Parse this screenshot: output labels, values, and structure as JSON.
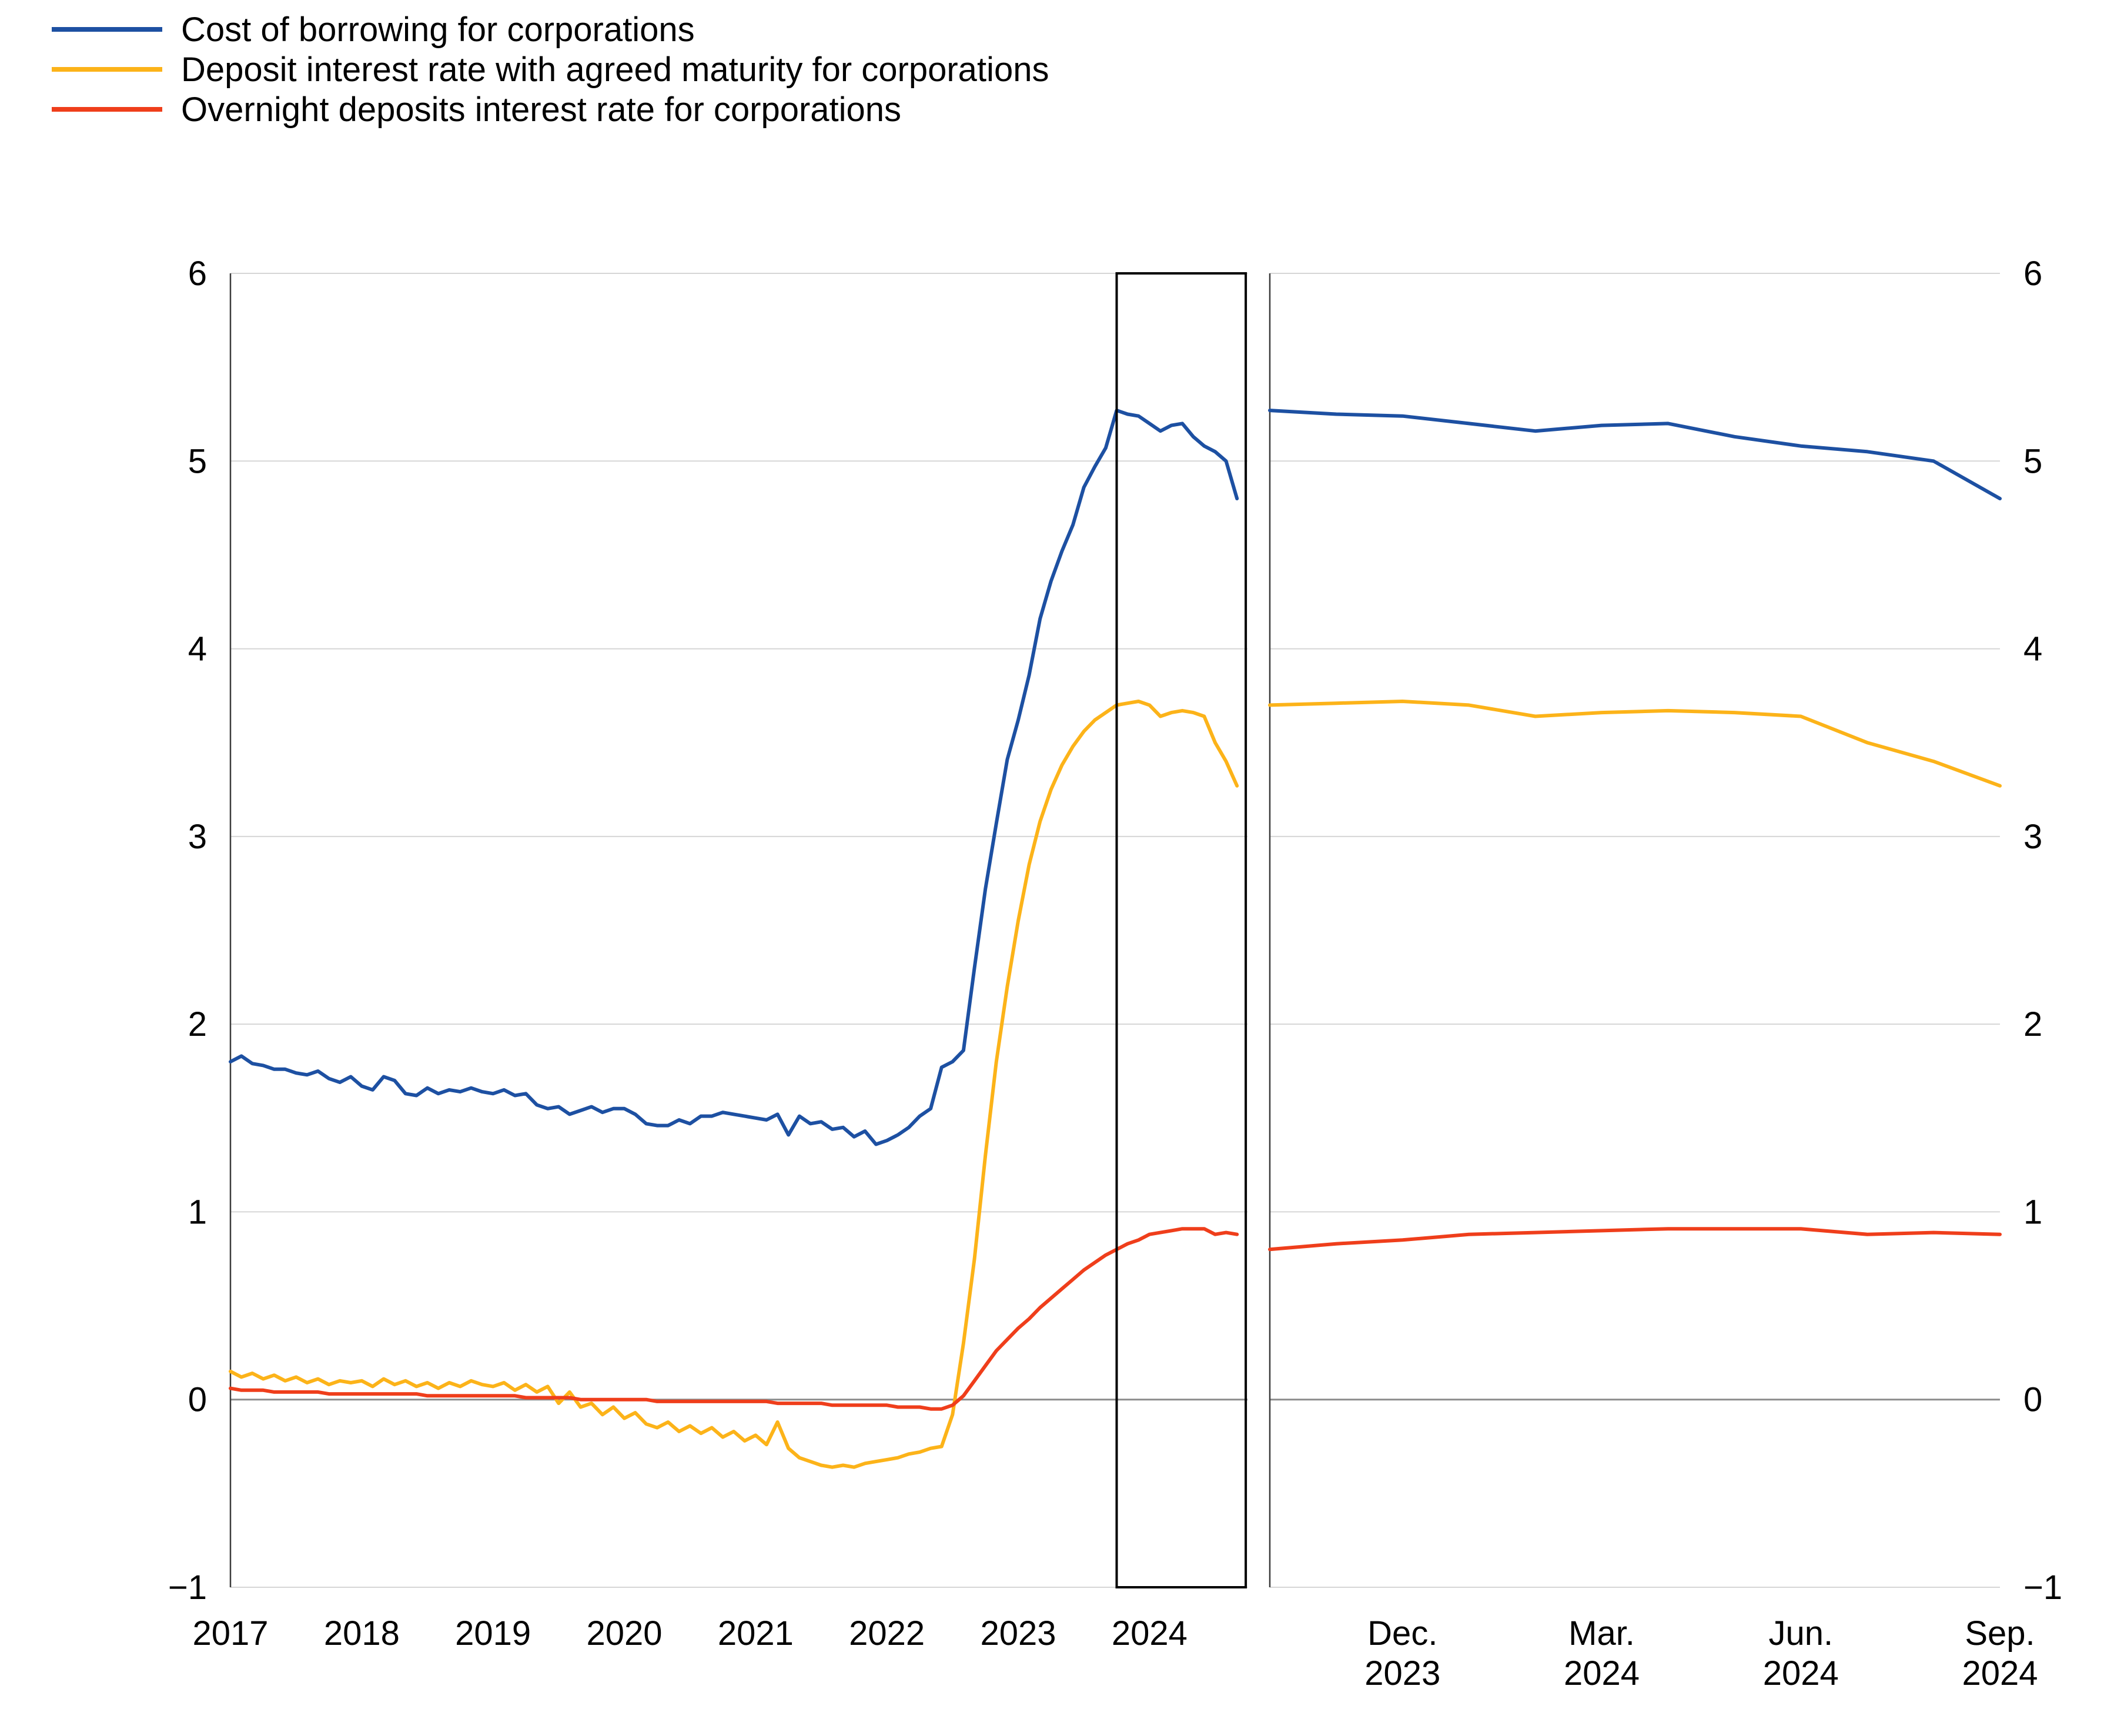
{
  "legend": {
    "items": [
      {
        "label": "Cost of borrowing for corporations",
        "color": "#1d50a2"
      },
      {
        "label": "Deposit interest rate with agreed maturity for corporations",
        "color": "#fcb319"
      },
      {
        "label": "Overnight deposits interest rate for corporations",
        "color": "#ef3e1b"
      }
    ]
  },
  "style": {
    "background": "#ffffff",
    "grid_color": "#d6d6d6",
    "zero_line_color": "#8c8c8c",
    "axis_color": "#3c3c3c",
    "box_color": "#000000",
    "text_color": "#000000"
  },
  "axes": {
    "y_tick_values": [
      6,
      5,
      4,
      3,
      2,
      1,
      0,
      -1
    ],
    "y_tick_labels": [
      "6",
      "5",
      "4",
      "3",
      "2",
      "1",
      "0",
      "−1"
    ],
    "ylim": [
      -1,
      6
    ]
  },
  "chart_data": [
    {
      "type": "line",
      "panel": "left",
      "x_unit": "monthly from January 2017 to September 2024",
      "x_tick_labels": [
        "2017",
        "2018",
        "2019",
        "2020",
        "2021",
        "2022",
        "2023",
        "2024"
      ],
      "ylim": [
        -1,
        6
      ],
      "grid": true,
      "highlight_box": {
        "from_month_index": 81,
        "to_month_index": 92.8,
        "note": "zoom region Oct 2023 - Sep 2024 shown in right panel"
      },
      "series": [
        {
          "name": "Cost of borrowing for corporations",
          "color": "#1d50a2",
          "values": [
            1.8,
            1.83,
            1.79,
            1.78,
            1.76,
            1.76,
            1.74,
            1.73,
            1.75,
            1.71,
            1.69,
            1.72,
            1.67,
            1.65,
            1.72,
            1.7,
            1.63,
            1.62,
            1.66,
            1.63,
            1.65,
            1.64,
            1.66,
            1.64,
            1.63,
            1.65,
            1.62,
            1.63,
            1.57,
            1.55,
            1.56,
            1.52,
            1.54,
            1.56,
            1.53,
            1.55,
            1.55,
            1.52,
            1.47,
            1.46,
            1.46,
            1.49,
            1.47,
            1.51,
            1.51,
            1.53,
            1.52,
            1.51,
            1.5,
            1.49,
            1.52,
            1.41,
            1.51,
            1.47,
            1.48,
            1.44,
            1.45,
            1.4,
            1.43,
            1.36,
            1.38,
            1.41,
            1.45,
            1.51,
            1.55,
            1.77,
            1.8,
            1.86,
            2.3,
            2.72,
            3.07,
            3.41,
            3.62,
            3.86,
            4.16,
            4.36,
            4.52,
            4.66,
            4.86,
            4.97,
            5.07,
            5.27,
            5.25,
            5.24,
            5.2,
            5.16,
            5.19,
            5.2,
            5.13,
            5.08,
            5.05,
            5.0,
            4.8
          ]
        },
        {
          "name": "Deposit interest rate with agreed maturity for corporations",
          "color": "#fcb319",
          "values": [
            0.15,
            0.12,
            0.14,
            0.11,
            0.13,
            0.1,
            0.12,
            0.09,
            0.11,
            0.08,
            0.1,
            0.09,
            0.1,
            0.07,
            0.11,
            0.08,
            0.1,
            0.07,
            0.09,
            0.06,
            0.09,
            0.07,
            0.1,
            0.08,
            0.07,
            0.09,
            0.05,
            0.08,
            0.04,
            0.07,
            -0.02,
            0.04,
            -0.04,
            -0.02,
            -0.08,
            -0.04,
            -0.1,
            -0.07,
            -0.13,
            -0.15,
            -0.12,
            -0.17,
            -0.14,
            -0.18,
            -0.15,
            -0.2,
            -0.17,
            -0.22,
            -0.19,
            -0.24,
            -0.12,
            -0.26,
            -0.31,
            -0.33,
            -0.35,
            -0.36,
            -0.35,
            -0.36,
            -0.34,
            -0.33,
            -0.32,
            -0.31,
            -0.29,
            -0.28,
            -0.26,
            -0.25,
            -0.08,
            0.3,
            0.75,
            1.3,
            1.8,
            2.2,
            2.55,
            2.85,
            3.08,
            3.25,
            3.38,
            3.48,
            3.56,
            3.62,
            3.66,
            3.7,
            3.71,
            3.72,
            3.7,
            3.64,
            3.66,
            3.67,
            3.66,
            3.64,
            3.5,
            3.4,
            3.27
          ]
        },
        {
          "name": "Overnight deposits interest rate for corporations",
          "color": "#ef3e1b",
          "values": [
            0.06,
            0.05,
            0.05,
            0.05,
            0.04,
            0.04,
            0.04,
            0.04,
            0.04,
            0.03,
            0.03,
            0.03,
            0.03,
            0.03,
            0.03,
            0.03,
            0.03,
            0.03,
            0.02,
            0.02,
            0.02,
            0.02,
            0.02,
            0.02,
            0.02,
            0.02,
            0.02,
            0.01,
            0.01,
            0.01,
            0.01,
            0.01,
            0.0,
            0.0,
            0.0,
            0.0,
            0.0,
            0.0,
            0.0,
            -0.01,
            -0.01,
            -0.01,
            -0.01,
            -0.01,
            -0.01,
            -0.01,
            -0.01,
            -0.01,
            -0.01,
            -0.01,
            -0.02,
            -0.02,
            -0.02,
            -0.02,
            -0.02,
            -0.03,
            -0.03,
            -0.03,
            -0.03,
            -0.03,
            -0.03,
            -0.04,
            -0.04,
            -0.04,
            -0.05,
            -0.05,
            -0.03,
            0.02,
            0.1,
            0.18,
            0.26,
            0.32,
            0.38,
            0.43,
            0.49,
            0.54,
            0.59,
            0.64,
            0.69,
            0.73,
            0.77,
            0.8,
            0.83,
            0.85,
            0.88,
            0.89,
            0.9,
            0.91,
            0.91,
            0.91,
            0.88,
            0.89,
            0.88
          ]
        }
      ]
    },
    {
      "type": "line",
      "panel": "right",
      "x_unit": "monthly, zoom of highlighted box (Oct 2023 - Sep 2024)",
      "x_ticks": [
        {
          "index": 2,
          "line1": "Dec.",
          "line2": "2023"
        },
        {
          "index": 5,
          "line1": "Mar.",
          "line2": "2024"
        },
        {
          "index": 8,
          "line1": "Jun.",
          "line2": "2024"
        },
        {
          "index": 11,
          "line1": "Sep.",
          "line2": "2024"
        }
      ],
      "ylim": [
        -1,
        6
      ],
      "grid": true,
      "series": [
        {
          "name": "Cost of borrowing for corporations",
          "color": "#1d50a2",
          "values": [
            5.27,
            5.25,
            5.24,
            5.2,
            5.16,
            5.19,
            5.2,
            5.13,
            5.08,
            5.05,
            5.0,
            4.8
          ]
        },
        {
          "name": "Deposit interest rate with agreed maturity for corporations",
          "color": "#fcb319",
          "values": [
            3.7,
            3.71,
            3.72,
            3.7,
            3.64,
            3.66,
            3.67,
            3.66,
            3.64,
            3.5,
            3.4,
            3.27
          ]
        },
        {
          "name": "Overnight deposits interest rate for corporations",
          "color": "#ef3e1b",
          "values": [
            0.8,
            0.83,
            0.85,
            0.88,
            0.89,
            0.9,
            0.91,
            0.91,
            0.91,
            0.88,
            0.89,
            0.88
          ]
        }
      ]
    }
  ]
}
